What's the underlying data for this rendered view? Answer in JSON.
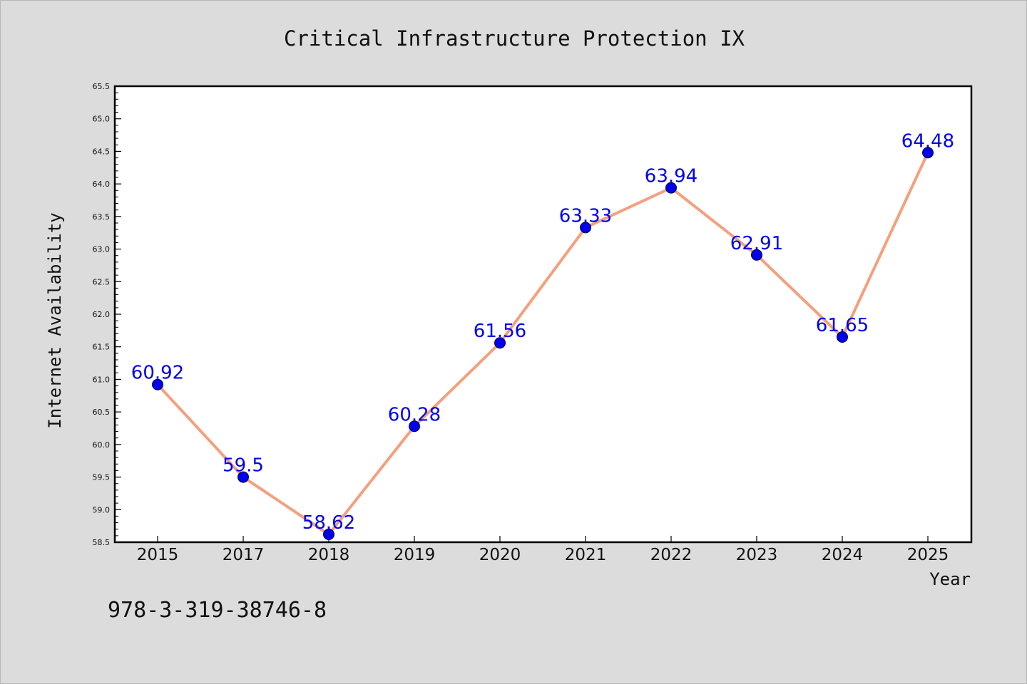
{
  "chart_data": {
    "type": "line",
    "title": "Critical Infrastructure Protection IX",
    "xlabel": "Year",
    "ylabel": "Internet Availability",
    "categories": [
      "2015",
      "2017",
      "2018",
      "2019",
      "2020",
      "2021",
      "2022",
      "2023",
      "2024",
      "2025"
    ],
    "series": [
      {
        "values": [
          60.92,
          59.5,
          58.62,
          60.28,
          61.56,
          63.33,
          63.94,
          62.91,
          61.65,
          64.48
        ],
        "data_labels": [
          "60.92",
          "59.5",
          "58.62",
          "60.28",
          "61.56",
          "63.33",
          "63.94",
          "62.91",
          "61.65",
          "64.48"
        ]
      }
    ],
    "ylim": [
      58.5,
      65.5
    ],
    "yticks": [
      "58.5",
      "59.0",
      "59.5",
      "60.0",
      "60.5",
      "61.0",
      "61.5",
      "62.0",
      "62.5",
      "63.0",
      "63.5",
      "64.0",
      "64.5",
      "65.0",
      "65.5"
    ],
    "grid": false,
    "legend": "none",
    "colors": {
      "line": "#f4a07e",
      "marker": "#0000ee",
      "label": "#0000ee",
      "background": "#dcdcdc",
      "plot_background": "#ffffff"
    }
  },
  "footer": {
    "isbn": "978-3-319-38746-8"
  }
}
